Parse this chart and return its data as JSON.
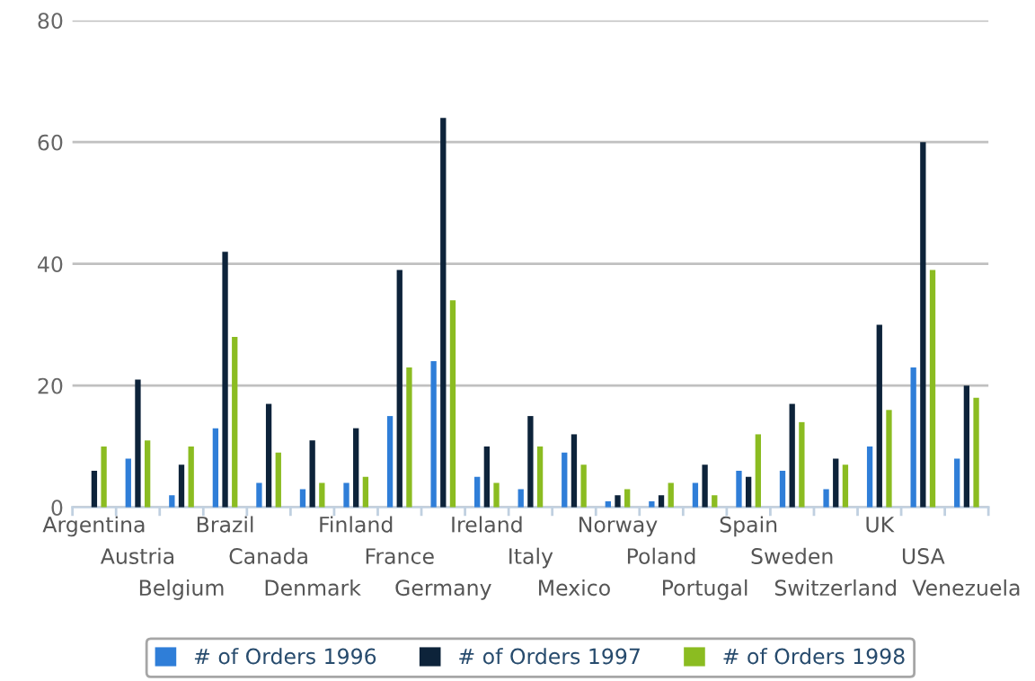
{
  "chart_data": {
    "type": "bar",
    "categories": [
      "Argentina",
      "Austria",
      "Belgium",
      "Brazil",
      "Canada",
      "Denmark",
      "Finland",
      "France",
      "Germany",
      "Ireland",
      "Italy",
      "Mexico",
      "Norway",
      "Poland",
      "Portugal",
      "Spain",
      "Sweden",
      "Switzerland",
      "UK",
      "USA",
      "Venezuela"
    ],
    "series": [
      {
        "name": "# of Orders 1996",
        "color": "#2f7ed8",
        "values": [
          null,
          8,
          2,
          13,
          4,
          3,
          4,
          15,
          24,
          5,
          3,
          9,
          1,
          1,
          4,
          6,
          6,
          3,
          10,
          23,
          8
        ]
      },
      {
        "name": "# of Orders 1997",
        "color": "#0d233a",
        "values": [
          6,
          21,
          7,
          42,
          17,
          11,
          13,
          39,
          64,
          10,
          15,
          12,
          2,
          2,
          7,
          5,
          17,
          8,
          30,
          60,
          20
        ]
      },
      {
        "name": "# of Orders 1998",
        "color": "#8bbc21",
        "values": [
          10,
          11,
          10,
          28,
          9,
          4,
          5,
          23,
          34,
          4,
          10,
          7,
          3,
          4,
          2,
          12,
          14,
          7,
          16,
          39,
          18
        ]
      }
    ],
    "ylim": [
      0,
      80
    ],
    "yticks": [
      0,
      20,
      40,
      60,
      80
    ],
    "grid": "y",
    "legend": "bottom"
  }
}
